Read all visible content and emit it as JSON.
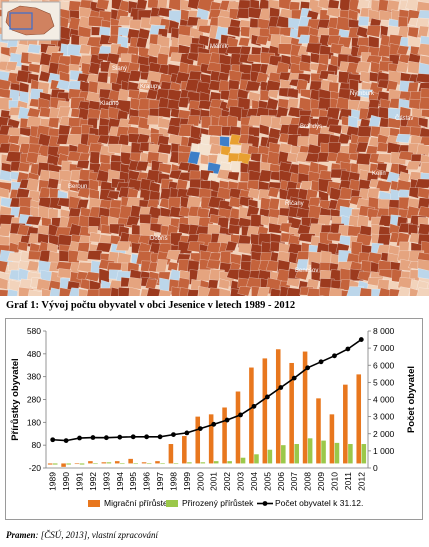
{
  "colors": {
    "map_dark": "#9c3a1e",
    "map_mid": "#c4633c",
    "map_light": "#e5a47f",
    "map_pale": "#f2d3bb",
    "map_water": "#bcd6ea",
    "map_center": "#f4e3d0",
    "migration": "#e8771e",
    "natural": "#9bc84a",
    "population": "#000000"
  },
  "map": {
    "town_labels": [
      "Kladno",
      "Kralupy",
      "Beroun",
      "Benešov",
      "Nymburk",
      "Mělník",
      "Brandýs",
      "Říčany",
      "Slaný",
      "Dobříš",
      "Kolín",
      "Čáslav"
    ]
  },
  "figure": {
    "caption": "Graf 1: Vývoj počtu obyvatel v obci Jesenice v letech 1989 - 2012",
    "source_label": "Pramen",
    "source_text": ": [ČSÚ, 2013], vlastní zpracování"
  },
  "chart_data": {
    "type": "bar",
    "categories": [
      "1989",
      "1990",
      "1991",
      "1992",
      "1993",
      "1994",
      "1995",
      "1996",
      "1997",
      "1998",
      "1999",
      "2000",
      "2001",
      "2002",
      "2003",
      "2004",
      "2005",
      "2006",
      "2007",
      "2008",
      "2009",
      "2010",
      "2011",
      "2012"
    ],
    "series": [
      {
        "name": "Migrační přírůstek",
        "type": "bar",
        "axis": "left",
        "values": [
          -5,
          -15,
          0,
          10,
          5,
          10,
          20,
          5,
          10,
          85,
          120,
          205,
          215,
          245,
          315,
          420,
          460,
          500,
          440,
          490,
          285,
          215,
          345,
          390
        ]
      },
      {
        "name": "Přirozený přírůstek",
        "type": "bar",
        "axis": "left",
        "values": [
          -5,
          -5,
          -5,
          0,
          5,
          0,
          0,
          0,
          0,
          0,
          5,
          5,
          10,
          10,
          25,
          40,
          60,
          80,
          85,
          110,
          100,
          90,
          85,
          85
        ]
      },
      {
        "name": "Počet obyvatel k 31.12.",
        "type": "line",
        "axis": "right",
        "values": [
          1650,
          1600,
          1750,
          1780,
          1770,
          1800,
          1820,
          1820,
          1820,
          1950,
          2050,
          2300,
          2550,
          2800,
          3100,
          3600,
          4150,
          4700,
          5250,
          5850,
          6200,
          6550,
          6950,
          7500
        ]
      }
    ],
    "y_left": {
      "label": "Přírůstky obyvatel",
      "min": -20,
      "max": 580,
      "ticks": [
        -20,
        80,
        180,
        280,
        380,
        480,
        580
      ]
    },
    "y_right": {
      "label": "Počet obyvatel",
      "min": 0,
      "max": 8000,
      "ticks": [
        "0",
        "1 000",
        "2 000",
        "3 000",
        "4 000",
        "5 000",
        "6 000",
        "7 000",
        "8 000"
      ]
    },
    "legend": {
      "position": "bottom"
    },
    "grid": false
  }
}
